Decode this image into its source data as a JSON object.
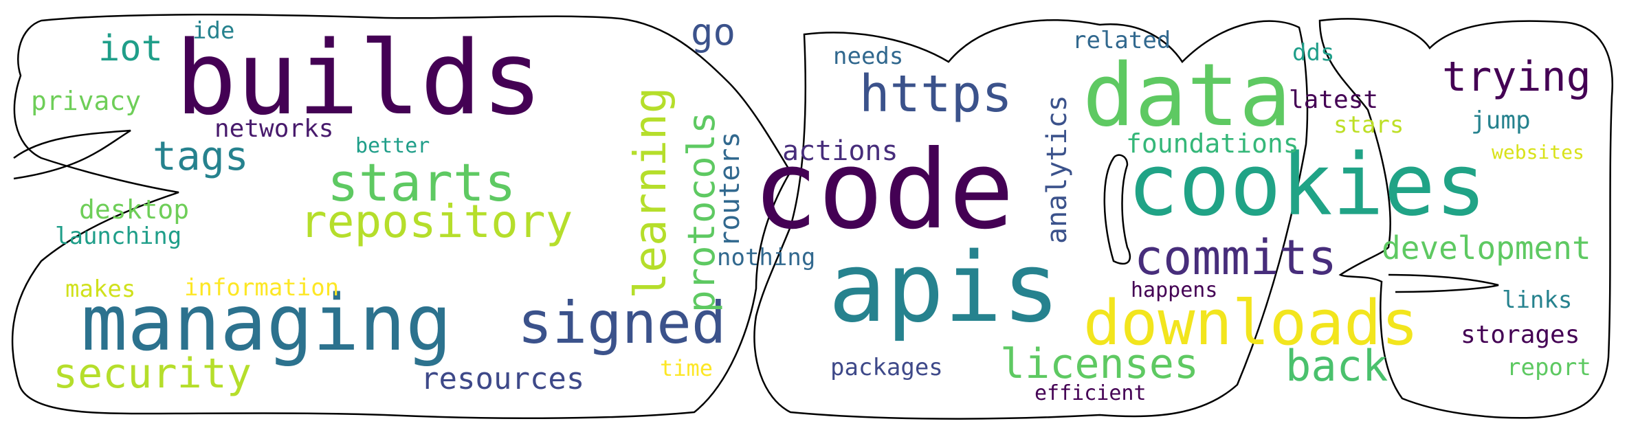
{
  "palette": {
    "dark_purple": "#440154",
    "purple": "#482878",
    "indigo": "#3e4989",
    "blue": "#31688e",
    "teal_blue": "#26828e",
    "teal": "#1f9e89",
    "green": "#35b779",
    "light_green": "#6ece58",
    "lime": "#b5de2b",
    "yellow": "#fde725",
    "outline": "#000000",
    "background": "#ffffff"
  },
  "words": [
    {
      "text": "builds",
      "color": "#440154"
    },
    {
      "text": "managing",
      "color": "#2c728e"
    },
    {
      "text": "code",
      "color": "#440154"
    },
    {
      "text": "cookies",
      "color": "#20a386"
    },
    {
      "text": "apis",
      "color": "#26828e"
    },
    {
      "text": "data",
      "color": "#5ec962"
    },
    {
      "text": "downloads",
      "color": "#f2e51d"
    },
    {
      "text": "signed",
      "color": "#3b528b"
    },
    {
      "text": "repository",
      "color": "#b5de2b"
    },
    {
      "text": "starts",
      "color": "#5ec962"
    },
    {
      "text": "commits",
      "color": "#472d7b"
    },
    {
      "text": "https",
      "color": "#3b528b"
    },
    {
      "text": "learning",
      "color": "#b5de2b"
    },
    {
      "text": "protocols",
      "color": "#5ec962"
    },
    {
      "text": "licenses",
      "color": "#5ec962"
    },
    {
      "text": "back",
      "color": "#4ac16d"
    },
    {
      "text": "security",
      "color": "#b5de2b"
    },
    {
      "text": "trying",
      "color": "#440154"
    },
    {
      "text": "tags",
      "color": "#26828e"
    },
    {
      "text": "iot",
      "color": "#1f9e89"
    },
    {
      "text": "go",
      "color": "#3b528b"
    },
    {
      "text": "development",
      "color": "#5ec962"
    },
    {
      "text": "analytics",
      "color": "#3b528b"
    },
    {
      "text": "routers",
      "color": "#31688e"
    },
    {
      "text": "resources",
      "color": "#3e4989"
    },
    {
      "text": "actions",
      "color": "#472d7b"
    },
    {
      "text": "foundations",
      "color": "#35b779"
    },
    {
      "text": "privacy",
      "color": "#6ece58"
    },
    {
      "text": "desktop",
      "color": "#6ece58"
    },
    {
      "text": "networks",
      "color": "#481a6c"
    },
    {
      "text": "latest",
      "color": "#440154"
    },
    {
      "text": "needs",
      "color": "#31688e"
    },
    {
      "text": "related",
      "color": "#31688e"
    },
    {
      "text": "dds",
      "color": "#1f9e89"
    },
    {
      "text": "stars",
      "color": "#bddf26"
    },
    {
      "text": "jump",
      "color": "#26828e"
    },
    {
      "text": "storages",
      "color": "#440154"
    },
    {
      "text": "links",
      "color": "#26828e"
    },
    {
      "text": "report",
      "color": "#5ec962"
    },
    {
      "text": "packages",
      "color": "#3e4989"
    },
    {
      "text": "efficient",
      "color": "#440154"
    },
    {
      "text": "happens",
      "color": "#440154"
    },
    {
      "text": "nothing",
      "color": "#31688e"
    },
    {
      "text": "information",
      "color": "#fde725"
    },
    {
      "text": "makes",
      "color": "#d0e11c"
    },
    {
      "text": "launching",
      "color": "#1f9e89"
    },
    {
      "text": "better",
      "color": "#1f9e89"
    },
    {
      "text": "ide",
      "color": "#26828e"
    },
    {
      "text": "time",
      "color": "#fde725"
    },
    {
      "text": "websites",
      "color": "#d8e219"
    }
  ]
}
